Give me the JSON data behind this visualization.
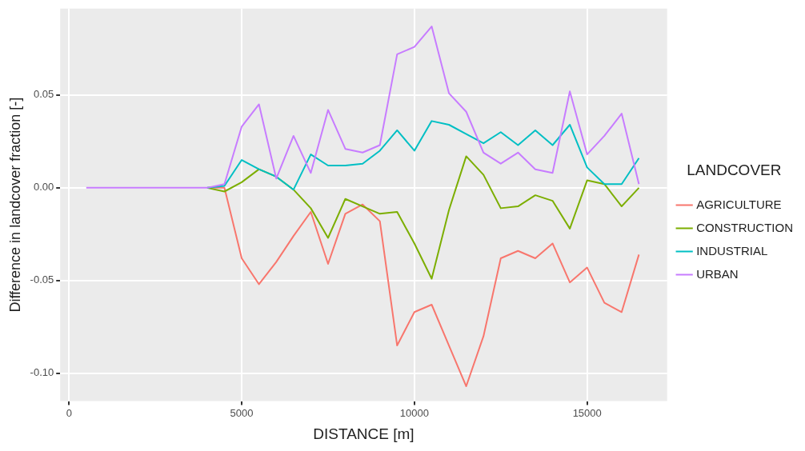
{
  "chart_data": {
    "type": "line",
    "xlabel": "DISTANCE [m]",
    "ylabel": "Difference in landcover fraction [-]",
    "legend_title": "LANDCOVER",
    "legend": "right",
    "grid": true,
    "marker": "none",
    "line_style": "solid",
    "x": [
      500,
      1000,
      1500,
      2000,
      2500,
      3000,
      3500,
      4000,
      4500,
      5000,
      5500,
      6000,
      6500,
      7000,
      7500,
      8000,
      8500,
      9000,
      9500,
      10000,
      10500,
      11000,
      11500,
      12000,
      12500,
      13000,
      13500,
      14000,
      14500,
      15000,
      15500,
      16000,
      16500
    ],
    "xlim": [
      -255,
      17316
    ],
    "xticks": [
      0,
      5000,
      10000,
      15000
    ],
    "ylim": [
      -0.115,
      0.0966
    ],
    "yticks": [
      {
        "value": -0.1,
        "label": "-0.10"
      },
      {
        "value": -0.05,
        "label": "-0.05"
      },
      {
        "value": 0,
        "label": "0.00"
      },
      {
        "value": 0.05,
        "label": "0.05"
      }
    ],
    "series": [
      {
        "name": "AGRICULTURE",
        "color": "#f8766d",
        "values": [
          null,
          null,
          null,
          null,
          null,
          null,
          null,
          0,
          0,
          -0.038,
          -0.052,
          -0.04,
          -0.026,
          -0.013,
          -0.041,
          -0.014,
          -0.009,
          -0.018,
          -0.085,
          -0.067,
          -0.063,
          -0.085,
          -0.107,
          -0.08,
          -0.038,
          -0.034,
          -0.038,
          -0.03,
          -0.051,
          -0.043,
          -0.062,
          -0.067,
          -0.036
        ]
      },
      {
        "name": "CONSTRUCTION",
        "color": "#7cae00",
        "values": [
          null,
          null,
          null,
          null,
          null,
          null,
          null,
          0,
          -0.002,
          0.003,
          0.01,
          0.006,
          -0.001,
          -0.011,
          -0.027,
          -0.006,
          -0.01,
          -0.014,
          -0.013,
          -0.03,
          -0.049,
          -0.012,
          0.017,
          0.007,
          -0.011,
          -0.01,
          -0.004,
          -0.007,
          -0.022,
          0.004,
          0.002,
          -0.01,
          0
        ]
      },
      {
        "name": "INDUSTRIAL",
        "color": "#00bfc4",
        "values": [
          null,
          null,
          null,
          null,
          null,
          null,
          null,
          0,
          0.001,
          0.015,
          0.01,
          0.006,
          -0.001,
          0.018,
          0.012,
          0.012,
          0.013,
          0.02,
          0.031,
          0.02,
          0.036,
          0.034,
          0.029,
          0.024,
          0.03,
          0.023,
          0.031,
          0.023,
          0.034,
          0.011,
          0.002,
          0.002,
          0.016
        ]
      },
      {
        "name": "URBAN",
        "color": "#c77cff",
        "values": [
          0,
          0,
          0,
          0,
          0,
          0,
          0,
          0,
          0.002,
          0.033,
          0.045,
          0.005,
          0.028,
          0.008,
          0.042,
          0.021,
          0.019,
          0.023,
          0.072,
          0.076,
          0.087,
          0.051,
          0.041,
          0.019,
          0.013,
          0.019,
          0.01,
          0.008,
          0.052,
          0.018,
          0.028,
          0.04,
          0.002
        ]
      }
    ]
  }
}
